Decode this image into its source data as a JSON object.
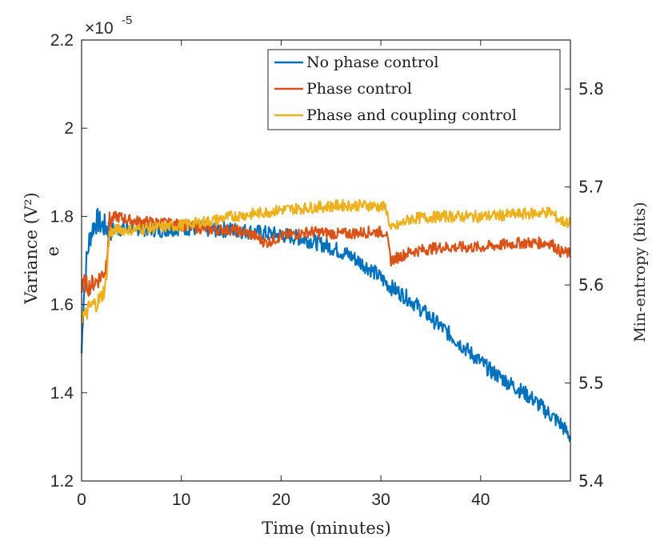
{
  "chart_data": {
    "type": "line",
    "title": "",
    "xlabel": "Time (minutes)",
    "ylabel": "Variance (V²)",
    "ylabel_extra": "e",
    "y2label": "Min-entropy (bits)",
    "xlim": [
      0,
      49
    ],
    "ylim": [
      1.2,
      2.2
    ],
    "y2lim": [
      5.4,
      5.85
    ],
    "xticks": [
      "0",
      "10",
      "20",
      "30",
      "40"
    ],
    "yticks": [
      "1.2",
      "1.4",
      "1.6",
      "1.8",
      "2",
      "2.2"
    ],
    "y2ticks": [
      "5.4",
      "5.5",
      "5.6",
      "5.7",
      "5.8"
    ],
    "y_exponent_base": "×10",
    "y_exponent": "-5",
    "legend_position": "top-right",
    "series": [
      {
        "name": "No phase control",
        "color": "#0072BD",
        "x": [
          0,
          0.2,
          0.5,
          0.8,
          1.2,
          1.6,
          2,
          3,
          5,
          8,
          10,
          13,
          15,
          17,
          19,
          21,
          23,
          25,
          27,
          29,
          31,
          33,
          35,
          37,
          39,
          41,
          43,
          45,
          47,
          48,
          49
        ],
        "y": [
          1.49,
          1.62,
          1.7,
          1.75,
          1.78,
          1.79,
          1.78,
          1.77,
          1.775,
          1.77,
          1.775,
          1.77,
          1.77,
          1.765,
          1.76,
          1.755,
          1.745,
          1.73,
          1.71,
          1.68,
          1.64,
          1.61,
          1.57,
          1.53,
          1.49,
          1.45,
          1.42,
          1.39,
          1.35,
          1.33,
          1.3
        ]
      },
      {
        "name": "Phase control",
        "color": "#D95319",
        "x": [
          0,
          0.3,
          0.7,
          1.2,
          1.8,
          2.4,
          2.8,
          3.5,
          5,
          8,
          10,
          13,
          15,
          17,
          18.5,
          20,
          23,
          26,
          29,
          30.5,
          31,
          33,
          36,
          40,
          44,
          47,
          48,
          49
        ],
        "y": [
          1.63,
          1.65,
          1.64,
          1.65,
          1.66,
          1.68,
          1.79,
          1.8,
          1.79,
          1.785,
          1.78,
          1.77,
          1.77,
          1.76,
          1.74,
          1.755,
          1.765,
          1.76,
          1.765,
          1.765,
          1.7,
          1.72,
          1.73,
          1.73,
          1.74,
          1.74,
          1.72,
          1.715
        ]
      },
      {
        "name": "Phase and coupling control",
        "color": "#EDB120",
        "x": [
          0,
          0.3,
          0.7,
          1.2,
          1.8,
          2.4,
          2.8,
          3.5,
          5,
          8,
          10,
          13,
          15,
          17,
          20,
          23,
          26,
          29,
          30.5,
          31,
          33,
          36,
          40,
          44,
          47,
          48,
          49
        ],
        "y": [
          1.58,
          1.57,
          1.59,
          1.6,
          1.61,
          1.64,
          1.76,
          1.77,
          1.77,
          1.775,
          1.78,
          1.79,
          1.8,
          1.805,
          1.815,
          1.82,
          1.825,
          1.825,
          1.82,
          1.77,
          1.795,
          1.8,
          1.8,
          1.805,
          1.81,
          1.79,
          1.785
        ]
      }
    ]
  }
}
